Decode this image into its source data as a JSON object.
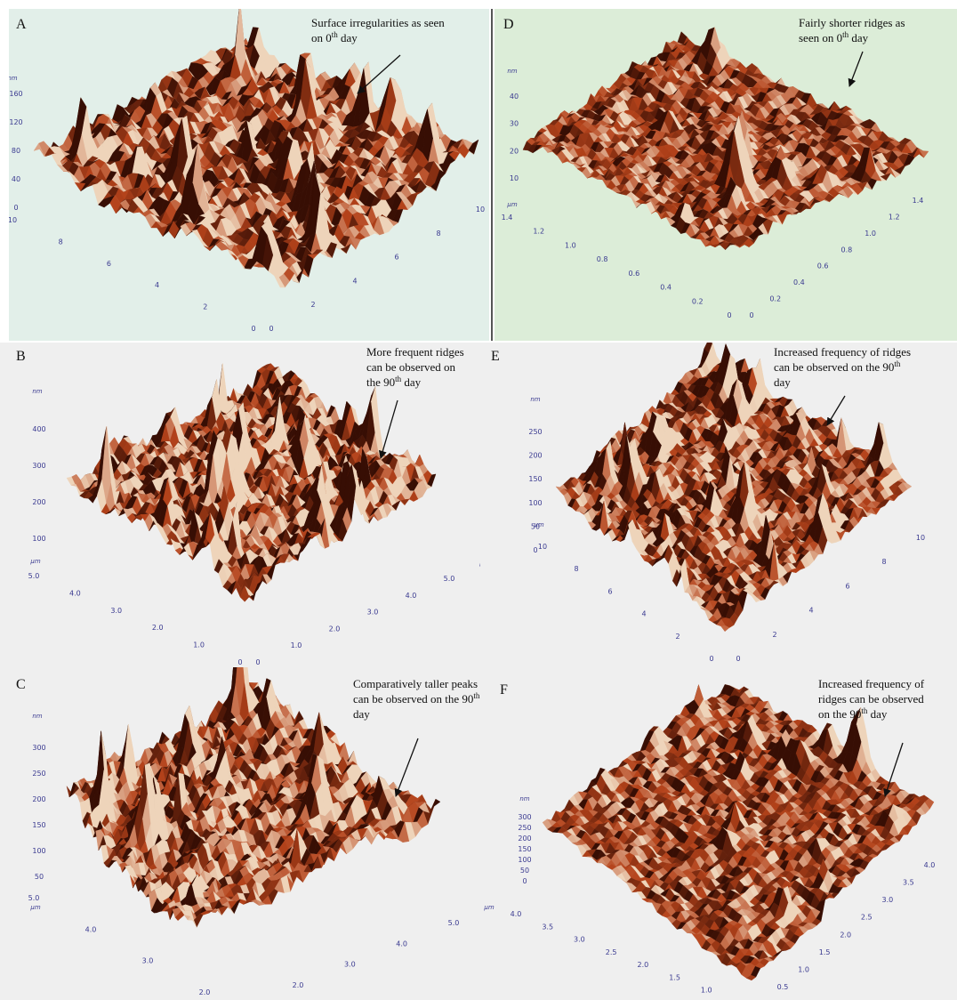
{
  "panels": [
    {
      "label": "A",
      "annotation": [
        [
          {
            "t": "Surface irregularities  as seen"
          }
        ],
        [
          {
            "t": "on 0"
          },
          {
            "sup": "th"
          },
          {
            "t": " day"
          }
        ]
      ],
      "z_unit": "nm",
      "z_ticks": [
        "0",
        "40",
        "80",
        "120",
        "160"
      ],
      "x_ticks": [
        "10",
        "8",
        "6",
        "4",
        "2",
        "0"
      ],
      "y_ticks": [
        "0",
        "2",
        "4",
        "6",
        "8",
        "10"
      ]
    },
    {
      "label": "D",
      "annotation": [
        [
          {
            "t": "Fairly shorter ridges as"
          }
        ],
        [
          {
            "t": "seen on 0"
          },
          {
            "sup": "th"
          },
          {
            "t": " day"
          }
        ]
      ],
      "z_unit": "nm",
      "xy_unit": "μm",
      "z_ticks": [
        "10",
        "20",
        "30",
        "40"
      ],
      "x_ticks": [
        "1.4",
        "1.2",
        "1.0",
        "0.8",
        "0.6",
        "0.4",
        "0.2",
        "0"
      ],
      "y_ticks": [
        "0",
        "0.2",
        "0.4",
        "0.6",
        "0.8",
        "1.0",
        "1.2",
        "1.4"
      ]
    },
    {
      "label": "B",
      "annotation": [
        [
          {
            "t": "More frequent ridges"
          }
        ],
        [
          {
            "t": "can be observed on"
          }
        ],
        [
          {
            "t": "the 90"
          },
          {
            "sup": "th"
          },
          {
            "t": " day"
          }
        ]
      ],
      "z_unit": "nm",
      "xy_unit": "μm",
      "z_ticks": [
        "100",
        "200",
        "300",
        "400"
      ],
      "x_ticks": [
        "5.0",
        "4.0",
        "3.0",
        "2.0",
        "1.0",
        "0"
      ],
      "y_ticks": [
        "0",
        "1.0",
        "2.0",
        "3.0",
        "4.0",
        "5.0"
      ]
    },
    {
      "label": "E",
      "annotation": [
        [
          {
            "t": "Increased frequency of ridges"
          }
        ],
        [
          {
            "t": "can be observed on the 90"
          },
          {
            "sup": "th"
          }
        ],
        [
          {
            "t": "day"
          }
        ]
      ],
      "z_unit": "nm",
      "xy_unit": "μm",
      "z_ticks": [
        "0",
        "50",
        "100",
        "150",
        "200",
        "250"
      ],
      "x_ticks": [
        "10",
        "8",
        "6",
        "4",
        "2",
        "0"
      ],
      "y_ticks": [
        "0",
        "2",
        "4",
        "6",
        "8",
        "10"
      ]
    },
    {
      "label": "C",
      "annotation": [
        [
          {
            "t": "Comparatively taller peaks"
          }
        ],
        [
          {
            "t": "can be observed on the 90"
          },
          {
            "sup": "th"
          }
        ],
        [
          {
            "t": "day"
          }
        ]
      ],
      "z_unit": "nm",
      "xy_unit": "μm",
      "z_ticks": [
        "50",
        "100",
        "150",
        "200",
        "250",
        "300"
      ],
      "x_ticks": [
        "5.0",
        "4.0",
        "3.0",
        "2.0"
      ],
      "y_ticks": [
        "2.0",
        "3.0",
        "4.0",
        "5.0"
      ]
    },
    {
      "label": "F",
      "annotation": [
        [
          {
            "t": "Increased frequency of"
          }
        ],
        [
          {
            "t": "ridges can be observed"
          }
        ],
        [
          {
            "t": "on the 90"
          },
          {
            "sup": "th"
          },
          {
            "t": " day"
          }
        ]
      ],
      "z_unit": "nm",
      "xy_unit": "μm",
      "z_ticks": [
        "0",
        "50",
        "100",
        "150",
        "200",
        "250",
        "300"
      ],
      "x_ticks": [
        "4.0",
        "3.5",
        "3.0",
        "2.5",
        "2.0",
        "1.5",
        "1.0",
        "0.5"
      ],
      "y_ticks": [
        "0.5",
        "1.0",
        "1.5",
        "2.0",
        "2.5",
        "3.0",
        "3.5",
        "4.0"
      ]
    }
  ]
}
